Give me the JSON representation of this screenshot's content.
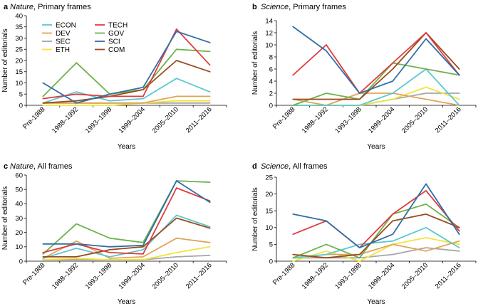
{
  "series_styles": {
    "ECON": "#5bc8cf",
    "DEV": "#e0a458",
    "SEC": "#a6a6a6",
    "ETH": "#f2e43a",
    "TECH": "#e03a3e",
    "GOV": "#6db24b",
    "SCI": "#2f6fa5",
    "COM": "#9a4a1d"
  },
  "chart_data": [
    {
      "letter": "a",
      "title_italic": "Nature",
      "title_rest": ", Primary frames",
      "type": "line",
      "categories": [
        "Pre-1988",
        "1988–1992",
        "1993–1998",
        "1999–2004",
        "2005–2010",
        "2011–2016"
      ],
      "xlabel": "Years",
      "ylabel": "Number of editorials",
      "ylim": [
        0,
        40
      ],
      "yticks": [
        0,
        5,
        10,
        15,
        20,
        25,
        30,
        35,
        40
      ],
      "legend": {
        "col1": [
          "ECON",
          "DEV",
          "SEC",
          "ETH"
        ],
        "col2": [
          "TECH",
          "GOV",
          "SCI",
          "COM"
        ]
      },
      "series": [
        {
          "name": "SEC",
          "values": [
            1,
            1,
            1,
            1,
            1,
            1
          ]
        },
        {
          "name": "ETH",
          "values": [
            0,
            0,
            0,
            1,
            2,
            2
          ]
        },
        {
          "name": "DEV",
          "values": [
            1,
            1,
            1,
            1,
            4,
            4
          ]
        },
        {
          "name": "ECON",
          "values": [
            1,
            6,
            2,
            3,
            12,
            6
          ]
        },
        {
          "name": "GOV",
          "values": [
            4,
            19,
            5,
            7,
            25,
            24
          ]
        },
        {
          "name": "COM",
          "values": [
            1,
            2,
            4,
            7,
            20,
            15
          ]
        },
        {
          "name": "TECH",
          "values": [
            3,
            5,
            4,
            4,
            34,
            18
          ]
        },
        {
          "name": "SCI",
          "values": [
            10,
            1,
            5,
            8,
            33,
            28
          ]
        }
      ]
    },
    {
      "letter": "b",
      "title_italic": "Science",
      "title_rest": ", Primary frames",
      "type": "line",
      "categories": [
        "Pre-1988",
        "1988–1992",
        "1993–1998",
        "1999–2004",
        "2005–2010",
        "2011–2016"
      ],
      "xlabel": "Years",
      "ylabel": "Number of editorials",
      "ylim": [
        0,
        14
      ],
      "yticks": [
        0,
        2,
        4,
        6,
        8,
        10,
        12,
        14
      ],
      "series": [
        {
          "name": "SEC",
          "values": [
            0,
            0,
            0,
            1,
            2,
            2
          ]
        },
        {
          "name": "ETH",
          "values": [
            0,
            0,
            0,
            1,
            3,
            1
          ]
        },
        {
          "name": "DEV",
          "values": [
            1,
            0,
            2,
            2,
            1,
            0
          ]
        },
        {
          "name": "ECON",
          "values": [
            0,
            0,
            0,
            2,
            6,
            0
          ]
        },
        {
          "name": "GOV",
          "values": [
            0,
            2,
            1,
            7,
            6,
            5
          ]
        },
        {
          "name": "COM",
          "values": [
            1,
            1,
            1,
            6,
            12,
            6
          ]
        },
        {
          "name": "TECH",
          "values": [
            5,
            10,
            2,
            7,
            12,
            5
          ]
        },
        {
          "name": "SCI",
          "values": [
            13,
            9,
            2,
            4,
            11,
            5
          ]
        }
      ]
    },
    {
      "letter": "c",
      "title_italic": "Nature",
      "title_rest": ", All frames",
      "type": "line",
      "categories": [
        "Pre-1988",
        "1988–1992",
        "1993–1998",
        "1999–2004",
        "2005–2010",
        "2011–2016"
      ],
      "xlabel": "Years",
      "ylabel": "Number of editorials",
      "ylim": [
        0,
        60
      ],
      "yticks": [
        0,
        10,
        20,
        30,
        40,
        50,
        60
      ],
      "series": [
        {
          "name": "SEC",
          "values": [
            1,
            1,
            1,
            1,
            3,
            4
          ]
        },
        {
          "name": "ETH",
          "values": [
            1,
            2,
            1,
            1,
            6,
            10
          ]
        },
        {
          "name": "DEV",
          "values": [
            2,
            14,
            2,
            3,
            16,
            13
          ]
        },
        {
          "name": "ECON",
          "values": [
            2,
            9,
            3,
            8,
            32,
            24
          ]
        },
        {
          "name": "GOV",
          "values": [
            5,
            26,
            16,
            13,
            56,
            55
          ]
        },
        {
          "name": "COM",
          "values": [
            3,
            3,
            8,
            10,
            30,
            23
          ]
        },
        {
          "name": "TECH",
          "values": [
            6,
            12,
            6,
            5,
            51,
            42
          ]
        },
        {
          "name": "SCI",
          "values": [
            12,
            12,
            10,
            11,
            56,
            41
          ]
        }
      ]
    },
    {
      "letter": "d",
      "title_italic": "Science",
      "title_rest": ", All frames",
      "type": "line",
      "categories": [
        "Pre-1988",
        "1988–1992",
        "1993–1998",
        "1999–2004",
        "2005–2010",
        "2011–2016"
      ],
      "xlabel": "Years",
      "ylabel": "Number of editorials",
      "ylim": [
        0,
        25
      ],
      "yticks": [
        0,
        5,
        10,
        15,
        20,
        25
      ],
      "series": [
        {
          "name": "SEC",
          "values": [
            1,
            1,
            1,
            2,
            4,
            3
          ]
        },
        {
          "name": "ETH",
          "values": [
            0,
            3,
            0,
            5,
            7,
            5
          ]
        },
        {
          "name": "DEV",
          "values": [
            1,
            2,
            2,
            5,
            3,
            6
          ]
        },
        {
          "name": "ECON",
          "values": [
            1,
            2,
            5,
            6,
            10,
            4
          ]
        },
        {
          "name": "GOV",
          "values": [
            1,
            5,
            1,
            14,
            17,
            10
          ]
        },
        {
          "name": "COM",
          "values": [
            2,
            1,
            2,
            12,
            14,
            10
          ]
        },
        {
          "name": "TECH",
          "values": [
            8,
            12,
            4,
            14,
            21,
            9
          ]
        },
        {
          "name": "SCI",
          "values": [
            14,
            12,
            4,
            8,
            23,
            8
          ]
        }
      ]
    }
  ]
}
